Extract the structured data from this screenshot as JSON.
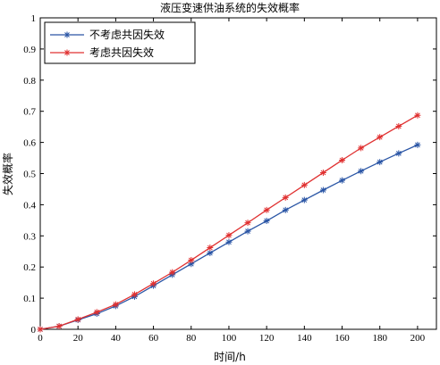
{
  "chart_data": {
    "type": "line",
    "title": "液压变速供油系统的失效概率",
    "xlabel": "时间/h",
    "ylabel": "失效概率",
    "xlim": [
      0,
      210
    ],
    "ylim": [
      0,
      1
    ],
    "x_ticks": [
      "0",
      "20",
      "40",
      "60",
      "80",
      "100",
      "120",
      "140",
      "160",
      "180",
      "200"
    ],
    "y_ticks": [
      "0",
      "0.1",
      "0.2",
      "0.3",
      "0.4",
      "0.5",
      "0.6",
      "0.7",
      "0.8",
      "0.9",
      "1"
    ],
    "legend_position": "top-left",
    "x": [
      0,
      10,
      20,
      30,
      40,
      50,
      60,
      70,
      80,
      90,
      100,
      110,
      120,
      130,
      140,
      150,
      160,
      170,
      180,
      190,
      200
    ],
    "series": [
      {
        "name": "不考虑共因失效",
        "color": "#2a55a5",
        "values": [
          0,
          0.01,
          0.03,
          0.05,
          0.075,
          0.105,
          0.14,
          0.175,
          0.21,
          0.245,
          0.28,
          0.315,
          0.348,
          0.383,
          0.415,
          0.447,
          0.478,
          0.508,
          0.537,
          0.565,
          0.592
        ]
      },
      {
        "name": "考虑共因失效",
        "color": "#e03030",
        "values": [
          0,
          0.01,
          0.032,
          0.055,
          0.08,
          0.112,
          0.147,
          0.183,
          0.222,
          0.262,
          0.302,
          0.342,
          0.383,
          0.423,
          0.463,
          0.503,
          0.543,
          0.582,
          0.617,
          0.652,
          0.687
        ]
      }
    ]
  }
}
